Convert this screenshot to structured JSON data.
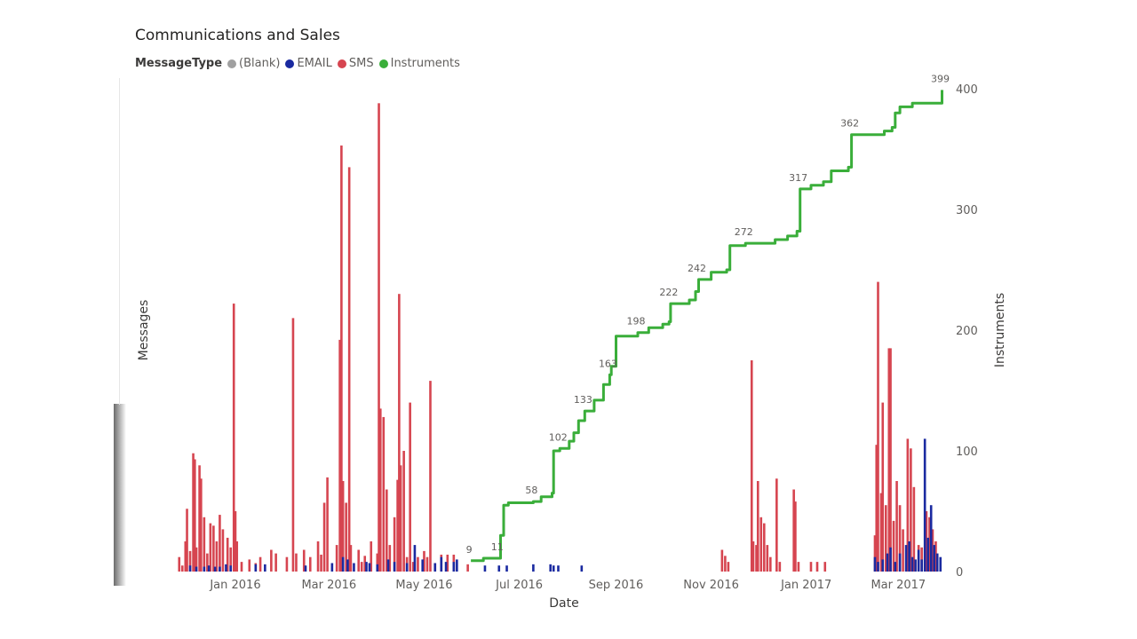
{
  "chart_data": {
    "type": "combo-bar-line",
    "title": "Communications and Sales",
    "legend": {
      "title": "MessageType",
      "position": "top-left",
      "entries": [
        {
          "label": "(Blank)",
          "color": "#a0a0a0"
        },
        {
          "label": "EMAIL",
          "color": "#1a2aa0"
        },
        {
          "label": "SMS",
          "color": "#d64550"
        },
        {
          "label": "Instruments",
          "color": "#3aae3a"
        }
      ]
    },
    "xlabel": "Date",
    "ylabel_left": "Messages",
    "ylabel_right": "Instruments",
    "x_range": [
      "2015-11-25",
      "2017-03-31"
    ],
    "x_ticks": [
      {
        "date": "2016-01-01",
        "label": "Jan 2016"
      },
      {
        "date": "2016-03-01",
        "label": "Mar 2016"
      },
      {
        "date": "2016-05-01",
        "label": "May 2016"
      },
      {
        "date": "2016-07-01",
        "label": "Jul 2016"
      },
      {
        "date": "2016-09-01",
        "label": "Sep 2016"
      },
      {
        "date": "2016-11-01",
        "label": "Nov 2016"
      },
      {
        "date": "2017-01-01",
        "label": "Jan 2017"
      },
      {
        "date": "2017-03-01",
        "label": "Mar 2017"
      }
    ],
    "ylim_right": [
      0,
      400
    ],
    "right_ticks": [
      0,
      100,
      200,
      300,
      400
    ],
    "ylim_left": [
      0,
      400
    ],
    "sms": [
      {
        "date": "2015-11-26",
        "value": 12
      },
      {
        "date": "2015-11-28",
        "value": 5
      },
      {
        "date": "2015-11-30",
        "value": 25
      },
      {
        "date": "2015-12-01",
        "value": 52
      },
      {
        "date": "2015-12-03",
        "value": 17
      },
      {
        "date": "2015-12-05",
        "value": 98
      },
      {
        "date": "2015-12-06",
        "value": 93
      },
      {
        "date": "2015-12-07",
        "value": 20
      },
      {
        "date": "2015-12-09",
        "value": 88
      },
      {
        "date": "2015-12-10",
        "value": 77
      },
      {
        "date": "2015-12-12",
        "value": 45
      },
      {
        "date": "2015-12-14",
        "value": 15
      },
      {
        "date": "2015-12-16",
        "value": 40
      },
      {
        "date": "2015-12-18",
        "value": 38
      },
      {
        "date": "2015-12-20",
        "value": 25
      },
      {
        "date": "2015-12-22",
        "value": 47
      },
      {
        "date": "2015-12-24",
        "value": 35
      },
      {
        "date": "2015-12-27",
        "value": 28
      },
      {
        "date": "2015-12-29",
        "value": 20
      },
      {
        "date": "2015-12-31",
        "value": 222
      },
      {
        "date": "2016-01-01",
        "value": 50
      },
      {
        "date": "2016-01-02",
        "value": 25
      },
      {
        "date": "2016-01-05",
        "value": 8
      },
      {
        "date": "2016-01-10",
        "value": 10
      },
      {
        "date": "2016-01-14",
        "value": 7
      },
      {
        "date": "2016-01-17",
        "value": 12
      },
      {
        "date": "2016-01-24",
        "value": 18
      },
      {
        "date": "2016-01-27",
        "value": 15
      },
      {
        "date": "2016-02-03",
        "value": 12
      },
      {
        "date": "2016-02-07",
        "value": 210
      },
      {
        "date": "2016-02-09",
        "value": 15
      },
      {
        "date": "2016-02-14",
        "value": 18
      },
      {
        "date": "2016-02-18",
        "value": 12
      },
      {
        "date": "2016-02-23",
        "value": 25
      },
      {
        "date": "2016-02-25",
        "value": 14
      },
      {
        "date": "2016-02-27",
        "value": 57
      },
      {
        "date": "2016-02-29",
        "value": 78
      },
      {
        "date": "2016-03-06",
        "value": 22
      },
      {
        "date": "2016-03-08",
        "value": 192
      },
      {
        "date": "2016-03-09",
        "value": 353
      },
      {
        "date": "2016-03-10",
        "value": 75
      },
      {
        "date": "2016-03-12",
        "value": 57
      },
      {
        "date": "2016-03-14",
        "value": 335
      },
      {
        "date": "2016-03-15",
        "value": 22
      },
      {
        "date": "2016-03-20",
        "value": 18
      },
      {
        "date": "2016-03-22",
        "value": 8
      },
      {
        "date": "2016-03-24",
        "value": 13
      },
      {
        "date": "2016-03-28",
        "value": 25
      },
      {
        "date": "2016-04-01",
        "value": 15
      },
      {
        "date": "2016-04-02",
        "value": 388
      },
      {
        "date": "2016-04-03",
        "value": 135
      },
      {
        "date": "2016-04-05",
        "value": 128
      },
      {
        "date": "2016-04-07",
        "value": 68
      },
      {
        "date": "2016-04-09",
        "value": 22
      },
      {
        "date": "2016-04-12",
        "value": 45
      },
      {
        "date": "2016-04-14",
        "value": 76
      },
      {
        "date": "2016-04-15",
        "value": 230
      },
      {
        "date": "2016-04-16",
        "value": 88
      },
      {
        "date": "2016-04-18",
        "value": 100
      },
      {
        "date": "2016-04-20",
        "value": 12
      },
      {
        "date": "2016-04-22",
        "value": 140
      },
      {
        "date": "2016-04-24",
        "value": 8
      },
      {
        "date": "2016-04-27",
        "value": 12
      },
      {
        "date": "2016-05-01",
        "value": 17
      },
      {
        "date": "2016-05-03",
        "value": 12
      },
      {
        "date": "2016-05-05",
        "value": 158
      },
      {
        "date": "2016-05-08",
        "value": 7
      },
      {
        "date": "2016-05-12",
        "value": 14
      },
      {
        "date": "2016-05-16",
        "value": 14
      },
      {
        "date": "2016-05-20",
        "value": 14
      },
      {
        "date": "2016-05-29",
        "value": 6
      },
      {
        "date": "2016-11-08",
        "value": 18
      },
      {
        "date": "2016-11-10",
        "value": 13
      },
      {
        "date": "2016-11-12",
        "value": 8
      },
      {
        "date": "2016-11-27",
        "value": 175
      },
      {
        "date": "2016-11-28",
        "value": 25
      },
      {
        "date": "2016-11-30",
        "value": 22
      },
      {
        "date": "2016-12-01",
        "value": 75
      },
      {
        "date": "2016-12-03",
        "value": 45
      },
      {
        "date": "2016-12-05",
        "value": 40
      },
      {
        "date": "2016-12-07",
        "value": 22
      },
      {
        "date": "2016-12-09",
        "value": 12
      },
      {
        "date": "2016-12-13",
        "value": 77
      },
      {
        "date": "2016-12-15",
        "value": 8
      },
      {
        "date": "2016-12-24",
        "value": 68
      },
      {
        "date": "2016-12-25",
        "value": 58
      },
      {
        "date": "2016-12-27",
        "value": 8
      },
      {
        "date": "2017-01-04",
        "value": 8
      },
      {
        "date": "2017-01-08",
        "value": 8
      },
      {
        "date": "2017-01-13",
        "value": 8
      },
      {
        "date": "2017-02-14",
        "value": 30
      },
      {
        "date": "2017-02-15",
        "value": 105
      },
      {
        "date": "2017-02-16",
        "value": 240
      },
      {
        "date": "2017-02-18",
        "value": 65
      },
      {
        "date": "2017-02-19",
        "value": 140
      },
      {
        "date": "2017-02-21",
        "value": 55
      },
      {
        "date": "2017-02-23",
        "value": 185
      },
      {
        "date": "2017-02-24",
        "value": 185
      },
      {
        "date": "2017-02-26",
        "value": 42
      },
      {
        "date": "2017-02-28",
        "value": 75
      },
      {
        "date": "2017-03-02",
        "value": 55
      },
      {
        "date": "2017-03-04",
        "value": 35
      },
      {
        "date": "2017-03-07",
        "value": 110
      },
      {
        "date": "2017-03-09",
        "value": 102
      },
      {
        "date": "2017-03-11",
        "value": 70
      },
      {
        "date": "2017-03-14",
        "value": 22
      },
      {
        "date": "2017-03-16",
        "value": 20
      },
      {
        "date": "2017-03-19",
        "value": 50
      },
      {
        "date": "2017-03-21",
        "value": 45
      },
      {
        "date": "2017-03-23",
        "value": 35
      },
      {
        "date": "2017-03-25",
        "value": 25
      }
    ],
    "email": [
      {
        "date": "2015-12-03",
        "value": 5
      },
      {
        "date": "2015-12-07",
        "value": 4
      },
      {
        "date": "2015-12-12",
        "value": 4
      },
      {
        "date": "2015-12-15",
        "value": 5
      },
      {
        "date": "2015-12-19",
        "value": 4
      },
      {
        "date": "2015-12-22",
        "value": 4
      },
      {
        "date": "2015-12-26",
        "value": 6
      },
      {
        "date": "2015-12-29",
        "value": 5
      },
      {
        "date": "2016-01-14",
        "value": 6
      },
      {
        "date": "2016-01-20",
        "value": 6
      },
      {
        "date": "2016-02-15",
        "value": 5
      },
      {
        "date": "2016-03-03",
        "value": 7
      },
      {
        "date": "2016-03-10",
        "value": 12
      },
      {
        "date": "2016-03-13",
        "value": 10
      },
      {
        "date": "2016-03-17",
        "value": 7
      },
      {
        "date": "2016-03-25",
        "value": 8
      },
      {
        "date": "2016-03-27",
        "value": 7
      },
      {
        "date": "2016-04-01",
        "value": 6
      },
      {
        "date": "2016-04-08",
        "value": 10
      },
      {
        "date": "2016-04-12",
        "value": 8
      },
      {
        "date": "2016-04-20",
        "value": 7
      },
      {
        "date": "2016-04-25",
        "value": 22
      },
      {
        "date": "2016-04-30",
        "value": 10
      },
      {
        "date": "2016-05-08",
        "value": 7
      },
      {
        "date": "2016-05-12",
        "value": 12
      },
      {
        "date": "2016-05-15",
        "value": 8
      },
      {
        "date": "2016-05-20",
        "value": 8
      },
      {
        "date": "2016-05-22",
        "value": 10
      },
      {
        "date": "2016-06-09",
        "value": 5
      },
      {
        "date": "2016-06-18",
        "value": 5
      },
      {
        "date": "2016-06-23",
        "value": 5
      },
      {
        "date": "2016-07-10",
        "value": 6
      },
      {
        "date": "2016-07-21",
        "value": 6
      },
      {
        "date": "2016-07-23",
        "value": 5
      },
      {
        "date": "2016-07-26",
        "value": 5
      },
      {
        "date": "2016-08-10",
        "value": 5
      },
      {
        "date": "2017-02-14",
        "value": 12
      },
      {
        "date": "2017-02-16",
        "value": 8
      },
      {
        "date": "2017-02-19",
        "value": 10
      },
      {
        "date": "2017-02-22",
        "value": 15
      },
      {
        "date": "2017-02-24",
        "value": 20
      },
      {
        "date": "2017-02-27",
        "value": 8
      },
      {
        "date": "2017-03-02",
        "value": 15
      },
      {
        "date": "2017-03-06",
        "value": 22
      },
      {
        "date": "2017-03-08",
        "value": 25
      },
      {
        "date": "2017-03-10",
        "value": 12
      },
      {
        "date": "2017-03-12",
        "value": 10
      },
      {
        "date": "2017-03-14",
        "value": 18
      },
      {
        "date": "2017-03-16",
        "value": 10
      },
      {
        "date": "2017-03-18",
        "value": 110
      },
      {
        "date": "2017-03-20",
        "value": 28
      },
      {
        "date": "2017-03-22",
        "value": 55
      },
      {
        "date": "2017-03-24",
        "value": 22
      },
      {
        "date": "2017-03-26",
        "value": 15
      },
      {
        "date": "2017-03-28",
        "value": 12
      }
    ],
    "instruments": [
      [
        "2016-05-31",
        9
      ],
      [
        "2016-06-08",
        11
      ],
      [
        "2016-06-18",
        11
      ],
      [
        "2016-06-19",
        30
      ],
      [
        "2016-06-21",
        55
      ],
      [
        "2016-06-24",
        57
      ],
      [
        "2016-07-10",
        58
      ],
      [
        "2016-07-15",
        62
      ],
      [
        "2016-07-22",
        65
      ],
      [
        "2016-07-23",
        100
      ],
      [
        "2016-07-27",
        102
      ],
      [
        "2016-08-02",
        108
      ],
      [
        "2016-08-05",
        115
      ],
      [
        "2016-08-08",
        125
      ],
      [
        "2016-08-12",
        133
      ],
      [
        "2016-08-18",
        142
      ],
      [
        "2016-08-24",
        155
      ],
      [
        "2016-08-28",
        163
      ],
      [
        "2016-08-29",
        170
      ],
      [
        "2016-09-01",
        195
      ],
      [
        "2016-09-15",
        198
      ],
      [
        "2016-09-22",
        202
      ],
      [
        "2016-10-01",
        205
      ],
      [
        "2016-10-05",
        207
      ],
      [
        "2016-10-06",
        222
      ],
      [
        "2016-10-18",
        225
      ],
      [
        "2016-10-22",
        232
      ],
      [
        "2016-10-24",
        242
      ],
      [
        "2016-11-01",
        248
      ],
      [
        "2016-11-11",
        250
      ],
      [
        "2016-11-13",
        270
      ],
      [
        "2016-11-23",
        272
      ],
      [
        "2016-12-12",
        275
      ],
      [
        "2016-12-20",
        278
      ],
      [
        "2016-12-26",
        282
      ],
      [
        "2016-12-28",
        317
      ],
      [
        "2017-01-04",
        320
      ],
      [
        "2017-01-12",
        323
      ],
      [
        "2017-01-17",
        332
      ],
      [
        "2017-01-28",
        335
      ],
      [
        "2017-01-30",
        362
      ],
      [
        "2017-02-20",
        365
      ],
      [
        "2017-02-25",
        368
      ],
      [
        "2017-02-27",
        380
      ],
      [
        "2017-03-02",
        385
      ],
      [
        "2017-03-10",
        388
      ],
      [
        "2017-03-29",
        399
      ]
    ],
    "instrument_labels": [
      {
        "date": "2016-05-31",
        "value": 9,
        "label": "9"
      },
      {
        "date": "2016-06-18",
        "value": 11,
        "label": "11"
      },
      {
        "date": "2016-07-10",
        "value": 58,
        "label": "58"
      },
      {
        "date": "2016-07-27",
        "value": 102,
        "label": "102"
      },
      {
        "date": "2016-08-12",
        "value": 133,
        "label": "133"
      },
      {
        "date": "2016-08-28",
        "value": 163,
        "label": "163"
      },
      {
        "date": "2016-09-15",
        "value": 198,
        "label": "198"
      },
      {
        "date": "2016-10-06",
        "value": 222,
        "label": "222"
      },
      {
        "date": "2016-10-24",
        "value": 242,
        "label": "242"
      },
      {
        "date": "2016-11-23",
        "value": 272,
        "label": "272"
      },
      {
        "date": "2016-12-28",
        "value": 317,
        "label": "317"
      },
      {
        "date": "2017-01-30",
        "value": 362,
        "label": "362"
      },
      {
        "date": "2017-03-29",
        "value": 399,
        "label": "399"
      }
    ]
  }
}
